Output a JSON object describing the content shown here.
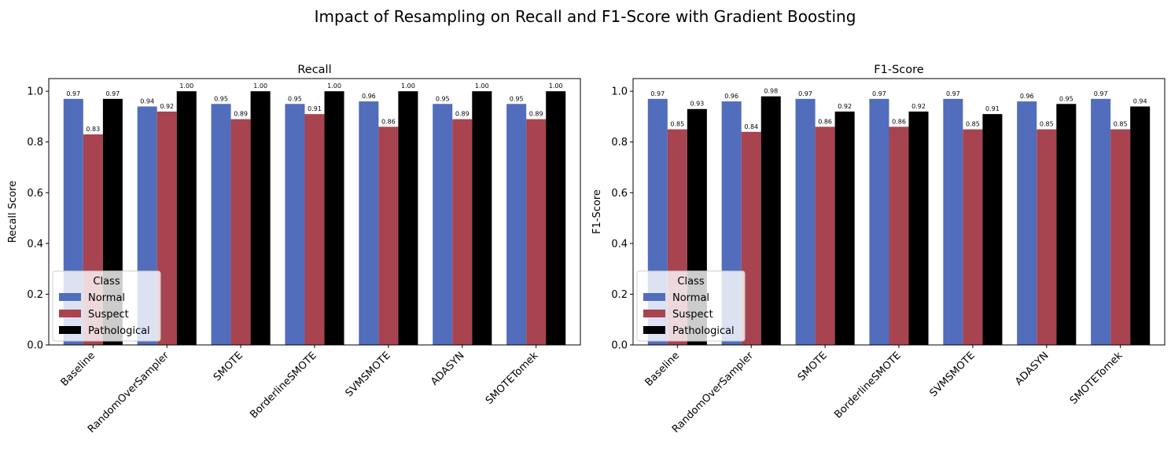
{
  "suptitle": "Impact of Resampling on Recall and F1-Score with Gradient Boosting",
  "colors": {
    "Normal": "#516dbb",
    "Suspect": "#a7444f",
    "Pathological": "#000000"
  },
  "chart_data": [
    {
      "type": "bar",
      "title": "Recall",
      "xlabel": "",
      "ylabel": "Recall Score",
      "ylim": [
        0,
        1.05
      ],
      "yticks": [
        "0.0",
        "0.2",
        "0.4",
        "0.6",
        "0.8",
        "1.0"
      ],
      "categories": [
        "Baseline",
        "RandomOverSampler",
        "SMOTE",
        "BorderlineSMOTE",
        "SVMSMOTE",
        "ADASYN",
        "SMOTETomek"
      ],
      "legend": {
        "title": "Class",
        "position": "lower-left"
      },
      "series": [
        {
          "name": "Normal",
          "values": [
            0.97,
            0.94,
            0.95,
            0.95,
            0.96,
            0.95,
            0.95
          ],
          "labels": [
            "0.97",
            "0.94",
            "0.95",
            "0.95",
            "0.96",
            "0.95",
            "0.95"
          ]
        },
        {
          "name": "Suspect",
          "values": [
            0.83,
            0.92,
            0.89,
            0.91,
            0.86,
            0.89,
            0.89
          ],
          "labels": [
            "0.83",
            "0.92",
            "0.89",
            "0.91",
            "0.86",
            "0.89",
            "0.89"
          ]
        },
        {
          "name": "Pathological",
          "values": [
            0.97,
            1.0,
            1.0,
            1.0,
            1.0,
            1.0,
            1.0
          ],
          "labels": [
            "0.97",
            "1.00",
            "1.00",
            "1.00",
            "1.00",
            "1.00",
            "1.00"
          ]
        }
      ]
    },
    {
      "type": "bar",
      "title": "F1-Score",
      "xlabel": "",
      "ylabel": "F1-Score",
      "ylim": [
        0,
        1.05
      ],
      "yticks": [
        "0.0",
        "0.2",
        "0.4",
        "0.6",
        "0.8",
        "1.0"
      ],
      "categories": [
        "Baseline",
        "RandomOverSampler",
        "SMOTE",
        "BorderlineSMOTE",
        "SVMSMOTE",
        "ADASYN",
        "SMOTETomek"
      ],
      "legend": {
        "title": "Class",
        "position": "lower-left"
      },
      "series": [
        {
          "name": "Normal",
          "values": [
            0.97,
            0.96,
            0.97,
            0.97,
            0.97,
            0.96,
            0.97
          ],
          "labels": [
            "0.97",
            "0.96",
            "0.97",
            "0.97",
            "0.97",
            "0.96",
            "0.97"
          ]
        },
        {
          "name": "Suspect",
          "values": [
            0.85,
            0.84,
            0.86,
            0.86,
            0.85,
            0.85,
            0.85
          ],
          "labels": [
            "0.85",
            "0.84",
            "0.86",
            "0.86",
            "0.85",
            "0.85",
            "0.85"
          ]
        },
        {
          "name": "Pathological",
          "values": [
            0.93,
            0.98,
            0.92,
            0.92,
            0.91,
            0.95,
            0.94
          ],
          "labels": [
            "0.93",
            "0.98",
            "0.92",
            "0.92",
            "0.91",
            "0.95",
            "0.94"
          ]
        }
      ]
    }
  ]
}
